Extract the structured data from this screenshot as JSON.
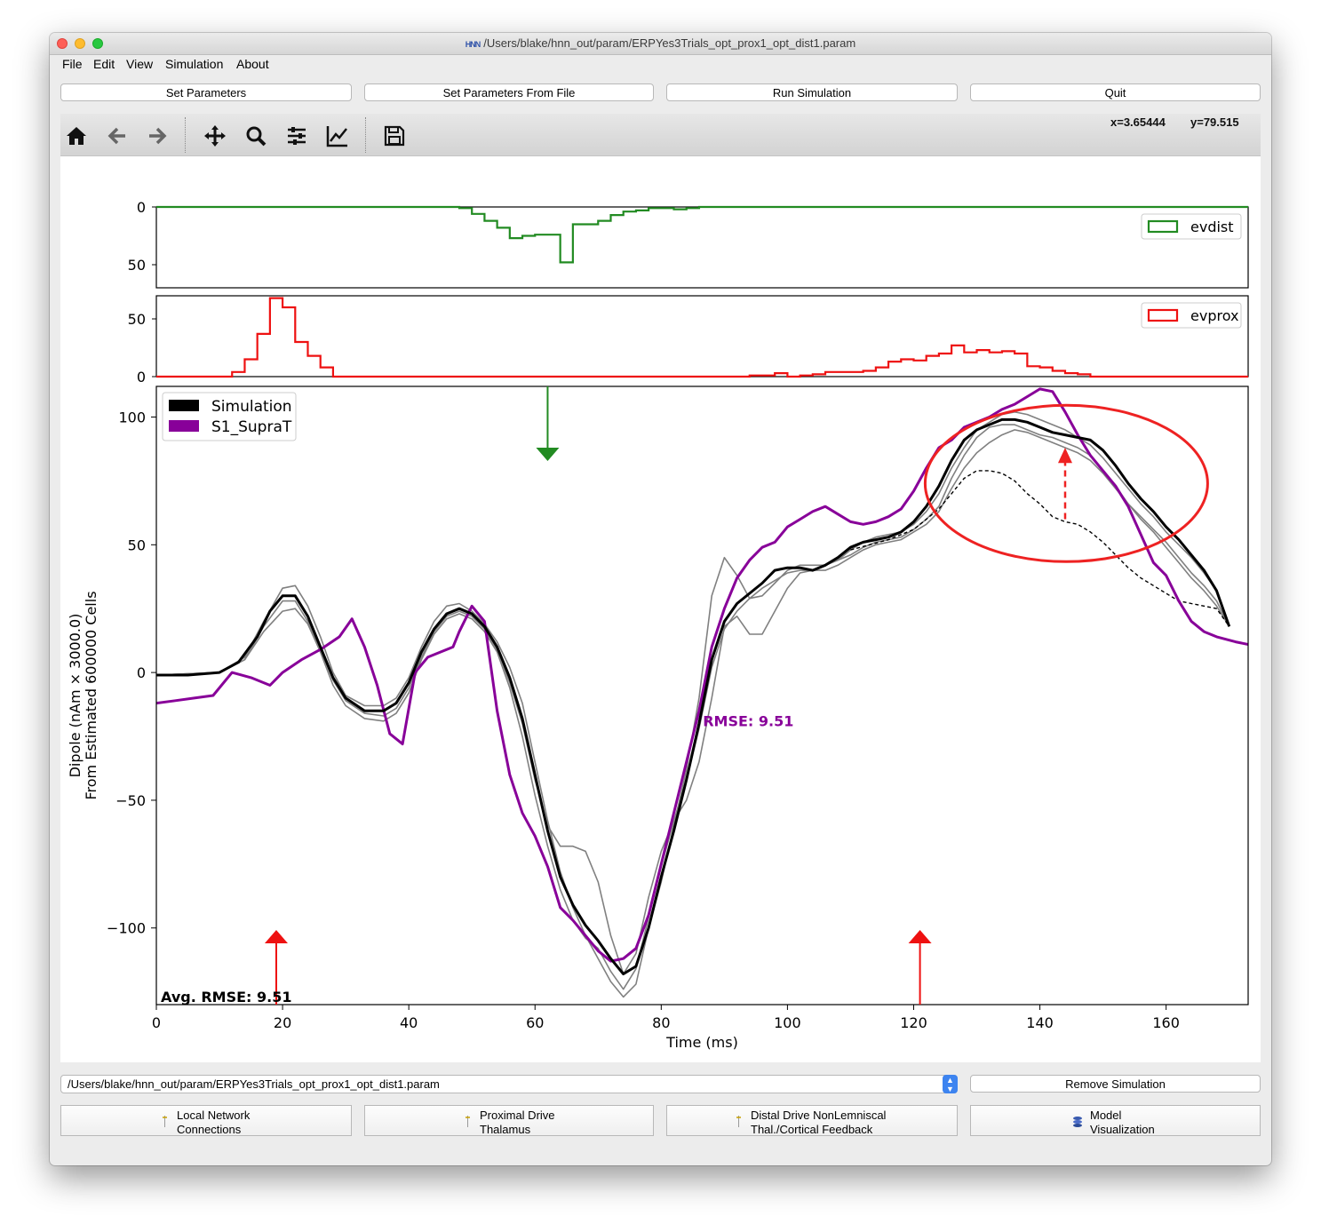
{
  "window": {
    "title": "/Users/blake/hnn_out/param/ERPYes3Trials_opt_prox1_opt_dist1.param",
    "app_badge": "HNN"
  },
  "menu": {
    "items": [
      "File",
      "Edit",
      "View",
      "Simulation",
      "About"
    ]
  },
  "top_buttons": {
    "set_parameters": "Set Parameters",
    "set_parameters_from_file": "Set Parameters From File",
    "run_simulation": "Run Simulation",
    "quit": "Quit"
  },
  "toolbar": {
    "tools": [
      "home-icon",
      "back-arrow-icon",
      "forward-arrow-icon",
      "pan-icon",
      "zoom-icon",
      "configure-subplots-icon",
      "edit-axis-icon",
      "save-icon"
    ],
    "x_readout": "x=3.65444",
    "y_readout": "y=79.515"
  },
  "chart_data": [
    {
      "type": "histogram",
      "legend": [
        "evdist"
      ],
      "legend_position": "top-right",
      "color": "#228b22",
      "ylim": [
        0,
        70
      ],
      "inverted": true,
      "yticks": [
        "0",
        "50"
      ],
      "bins_x": [
        46,
        48,
        50,
        52,
        54,
        56,
        58,
        60,
        62,
        64,
        66,
        68,
        70,
        72,
        74,
        76,
        78,
        80,
        82,
        84
      ],
      "counts": [
        0,
        1,
        6,
        12,
        18,
        27,
        25,
        24,
        24,
        48,
        15,
        15,
        12,
        7,
        4,
        3,
        1,
        1,
        2,
        1
      ]
    },
    {
      "type": "histogram",
      "legend": [
        "evprox"
      ],
      "legend_position": "top-right",
      "color": "#ee1111",
      "ylim": [
        0,
        70
      ],
      "yticks": [
        "50",
        "0"
      ],
      "bins_x": [
        10,
        12,
        14,
        16,
        18,
        20,
        22,
        24,
        26,
        28,
        94,
        96,
        98,
        100,
        102,
        104,
        106,
        108,
        110,
        112,
        114,
        116,
        118,
        120,
        122,
        124,
        126,
        128,
        130,
        132,
        134,
        136,
        138,
        140,
        142,
        144,
        146
      ],
      "counts": [
        0,
        4,
        15,
        37,
        68,
        60,
        30,
        18,
        8,
        0,
        1,
        1,
        3,
        0,
        1,
        2,
        4,
        4,
        4,
        5,
        8,
        13,
        15,
        14,
        18,
        20,
        27,
        21,
        23,
        21,
        22,
        20,
        9,
        8,
        5,
        3,
        2
      ]
    },
    {
      "type": "line",
      "xlabel": "Time (ms)",
      "ylabel": "Dipole (nAm × 3000.0)",
      "ylabel2": "From Estimated 600000 Cells",
      "xlim": [
        0,
        173
      ],
      "ylim": [
        -130,
        112
      ],
      "xticks": [
        "0",
        "20",
        "40",
        "60",
        "80",
        "100",
        "120",
        "140",
        "160"
      ],
      "yticks": [
        "100",
        "50",
        "0",
        "−50",
        "−100"
      ],
      "legend_position": "top-left",
      "rmse_label": "RMSE: 9.51",
      "avg_rmse_label": "Avg. RMSE: 9.51",
      "series": [
        {
          "name": "Simulation",
          "color": "#000000",
          "x": [
            0,
            5,
            10,
            13,
            16,
            18,
            20,
            22,
            24,
            26,
            28,
            30,
            33,
            36,
            38,
            40,
            42,
            44,
            46,
            48,
            50,
            52,
            54,
            56,
            58,
            60,
            62,
            64,
            66,
            68,
            70,
            72,
            74,
            76,
            78,
            80,
            82,
            84,
            86,
            88,
            90,
            92,
            94,
            96,
            98,
            100,
            102,
            104,
            106,
            108,
            110,
            112,
            114,
            116,
            118,
            120,
            122,
            124,
            126,
            128,
            130,
            132,
            134,
            136,
            138,
            140,
            142,
            144,
            146,
            148,
            150,
            152,
            154,
            156,
            158,
            160,
            162,
            164,
            166,
            168,
            170
          ],
          "y": [
            -1,
            -1,
            0,
            4,
            14,
            24,
            30,
            30,
            22,
            10,
            -2,
            -10,
            -15,
            -15,
            -12,
            -4,
            8,
            17,
            23,
            25,
            23,
            18,
            10,
            -2,
            -18,
            -40,
            -62,
            -80,
            -91,
            -99,
            -105,
            -112,
            -118,
            -115,
            -100,
            -80,
            -62,
            -42,
            -20,
            5,
            20,
            27,
            31,
            35,
            40,
            41,
            41,
            40,
            42,
            45,
            49,
            51,
            52,
            53,
            55,
            59,
            65,
            73,
            83,
            91,
            95,
            97,
            99,
            99,
            98,
            96,
            94,
            93,
            92,
            91,
            87,
            81,
            74,
            68,
            63,
            57,
            52,
            46,
            40,
            32,
            18
          ]
        },
        {
          "name": "S1_SupraT",
          "color": "#880099",
          "x": [
            0,
            3,
            6,
            9,
            12,
            15,
            18,
            20,
            23,
            26,
            29,
            31,
            33,
            35,
            37,
            39,
            41,
            43,
            45,
            47,
            48,
            50,
            52,
            54,
            56,
            58,
            60,
            62,
            64,
            66,
            68,
            70,
            72,
            74,
            76,
            78,
            80,
            82,
            84,
            86,
            88,
            90,
            92,
            94,
            96,
            98,
            100,
            102,
            104,
            106,
            108,
            110,
            112,
            114,
            116,
            118,
            120,
            122,
            124,
            126,
            128,
            130,
            132,
            134,
            136,
            138,
            140,
            142,
            144,
            146,
            148,
            150,
            152,
            154,
            156,
            158,
            160,
            162,
            164,
            166,
            168,
            171,
            173
          ],
          "y": [
            -12,
            -11,
            -10,
            -9,
            0,
            -2,
            -5,
            0,
            5,
            9,
            14,
            21,
            10,
            -5,
            -24,
            -28,
            0,
            6,
            8,
            10,
            16,
            26,
            20,
            -15,
            -40,
            -55,
            -64,
            -76,
            -92,
            -97,
            -103,
            -109,
            -113,
            -112,
            -108,
            -95,
            -75,
            -55,
            -35,
            -15,
            10,
            25,
            37,
            44,
            49,
            51,
            57,
            60,
            63,
            65,
            62,
            59,
            58,
            59,
            61,
            64,
            71,
            80,
            88,
            91,
            96,
            98,
            100,
            103,
            105,
            108,
            111,
            110,
            102,
            93,
            85,
            79,
            73,
            65,
            54,
            43,
            38,
            28,
            20,
            16,
            14,
            12,
            11
          ]
        },
        {
          "name": "",
          "color": "#808080",
          "x": [
            0,
            10,
            14,
            17,
            20,
            22,
            24,
            26,
            28,
            30,
            33,
            36,
            38,
            40,
            42,
            44,
            46,
            48,
            50,
            52,
            54,
            56,
            58,
            60,
            62,
            64,
            66,
            68,
            70,
            72,
            74,
            76,
            78,
            80,
            82,
            84,
            86,
            88,
            90,
            92,
            94,
            96,
            98,
            100,
            102,
            104,
            106,
            108,
            110,
            112,
            114,
            116,
            118,
            120,
            122,
            124,
            126,
            128,
            130,
            132,
            134,
            136,
            138,
            140,
            142,
            144,
            146,
            148,
            150,
            152,
            154,
            156,
            158,
            160,
            162,
            164,
            166,
            168,
            170
          ],
          "y": [
            -1,
            0,
            6,
            20,
            33,
            34,
            26,
            14,
            0,
            -9,
            -13,
            -13,
            -10,
            -2,
            10,
            20,
            26,
            27,
            24,
            19,
            12,
            2,
            -12,
            -35,
            -58,
            -78,
            -92,
            -103,
            -112,
            -121,
            -127,
            -122,
            -100,
            -82,
            -60,
            -38,
            -10,
            30,
            45,
            38,
            29,
            30,
            35,
            40,
            42,
            42,
            42,
            44,
            46,
            49,
            51,
            52,
            53,
            56,
            60,
            65,
            76,
            85,
            92,
            96,
            97,
            97,
            95,
            93,
            92,
            90,
            88,
            85,
            79,
            73,
            66,
            60,
            55,
            49,
            43,
            37,
            32,
            26,
            18
          ]
        },
        {
          "name": "",
          "color": "#808080",
          "x": [
            0,
            10,
            14,
            17,
            20,
            22,
            24,
            26,
            28,
            30,
            33,
            36,
            38,
            40,
            42,
            44,
            46,
            48,
            50,
            52,
            54,
            56,
            58,
            60,
            62,
            64,
            66,
            68,
            70,
            72,
            74,
            76,
            78,
            80,
            82,
            84,
            86,
            88,
            90,
            92,
            94,
            96,
            98,
            100,
            102,
            104,
            106,
            108,
            110,
            112,
            114,
            116,
            118,
            120,
            122,
            124,
            126,
            128,
            130,
            132,
            134,
            136,
            138,
            140,
            142,
            144,
            146,
            148,
            150,
            152,
            154,
            156,
            158,
            160,
            162,
            164,
            166,
            168,
            170
          ],
          "y": [
            -1,
            0,
            5,
            18,
            28,
            28,
            20,
            9,
            -3,
            -11,
            -16,
            -17,
            -14,
            -6,
            6,
            16,
            22,
            24,
            22,
            17,
            9,
            -4,
            -20,
            -42,
            -60,
            -68,
            -68,
            -70,
            -82,
            -103,
            -118,
            -110,
            -88,
            -70,
            -58,
            -50,
            -35,
            -10,
            18,
            22,
            15,
            15,
            24,
            33,
            39,
            40,
            40,
            42,
            45,
            48,
            50,
            51,
            52,
            55,
            58,
            63,
            72,
            80,
            86,
            90,
            93,
            95,
            94,
            92,
            90,
            88,
            86,
            83,
            78,
            72,
            66,
            61,
            56,
            51,
            45,
            39,
            34,
            28,
            18
          ]
        },
        {
          "name": "",
          "color": "#808080",
          "x": [
            0,
            10,
            14,
            17,
            20,
            22,
            24,
            26,
            28,
            30,
            33,
            36,
            38,
            40,
            42,
            44,
            46,
            48,
            50,
            52,
            54,
            56,
            58,
            60,
            62,
            64,
            66,
            68,
            70,
            72,
            74,
            76,
            78,
            80,
            82,
            84,
            86,
            88,
            90,
            92,
            94,
            96,
            98,
            100,
            102,
            104,
            106,
            108,
            110,
            112,
            114,
            116,
            118,
            120,
            122,
            124,
            126,
            128,
            130,
            132,
            134,
            136,
            138,
            140,
            142,
            144,
            146,
            148,
            150,
            152,
            154,
            156,
            158,
            160,
            162,
            164,
            166,
            168,
            170
          ],
          "y": [
            -1,
            0,
            5,
            16,
            24,
            25,
            19,
            8,
            -5,
            -13,
            -18,
            -19,
            -16,
            -8,
            5,
            15,
            21,
            23,
            21,
            16,
            8,
            -6,
            -25,
            -48,
            -68,
            -85,
            -97,
            -104,
            -108,
            -117,
            -124,
            -116,
            -96,
            -76,
            -58,
            -42,
            -22,
            2,
            17,
            24,
            29,
            33,
            36,
            39,
            40,
            40,
            42,
            44,
            48,
            51,
            53,
            54,
            55,
            58,
            63,
            70,
            80,
            88,
            95,
            98,
            101,
            102,
            101,
            99,
            97,
            95,
            92,
            89,
            84,
            78,
            72,
            66,
            61,
            55,
            50,
            45,
            39,
            32,
            18
          ]
        },
        {
          "name": "",
          "color": "#000000",
          "dashed": true,
          "x": [
            110,
            116,
            120,
            124,
            126,
            128,
            130,
            132,
            134,
            136,
            138,
            140,
            142,
            144,
            146,
            148,
            150,
            152,
            154,
            156,
            158,
            160,
            162,
            164,
            166,
            168,
            170
          ],
          "y": [
            48,
            52,
            56,
            64,
            70,
            76,
            79,
            79,
            78,
            75,
            70,
            66,
            61,
            59,
            58,
            55,
            51,
            46,
            41,
            37,
            34,
            31,
            28,
            27,
            26,
            25,
            18
          ]
        }
      ],
      "markers": [
        {
          "kind": "arrow-down",
          "color": "#228b22",
          "x": 62
        },
        {
          "kind": "arrow-up",
          "color": "#ee1111",
          "x": 19
        },
        {
          "kind": "arrow-up",
          "color": "#ee1111",
          "x": 121
        }
      ]
    }
  ],
  "bottom": {
    "combo_value": "/Users/blake/hnn_out/param/ERPYes3Trials_opt_prox1_opt_dist1.param",
    "remove_simulation": "Remove Simulation",
    "buttons": [
      {
        "line1": "Local Network",
        "line2": "Connections"
      },
      {
        "line1": "Proximal Drive",
        "line2": "Thalamus"
      },
      {
        "line1": "Distal Drive NonLemniscal",
        "line2": "Thal./Cortical Feedback"
      },
      {
        "line1": "Model",
        "line2": "Visualization"
      }
    ]
  }
}
